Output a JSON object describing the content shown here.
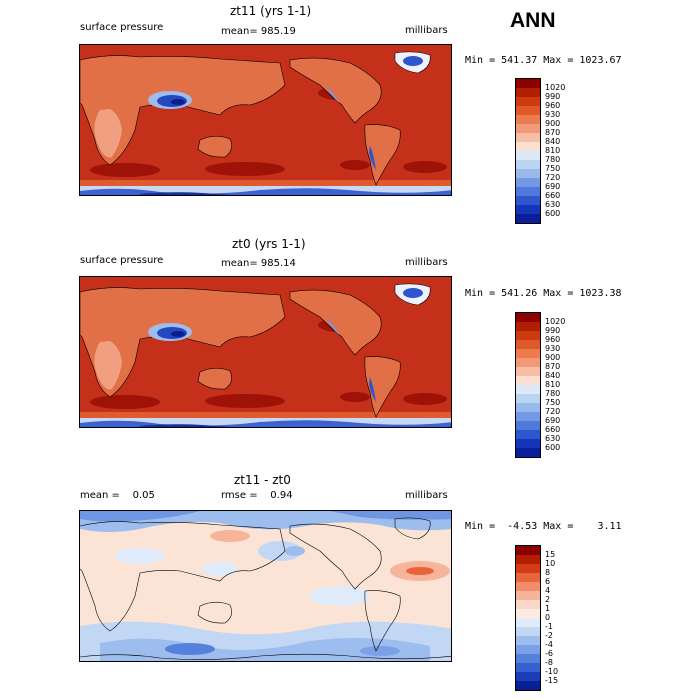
{
  "header": {
    "season": "ANN"
  },
  "panels": [
    {
      "title": "zt11 (yrs 1-1)",
      "left_label": "surface pressure",
      "center_label": "mean= 985.19",
      "right_label": "millibars",
      "minmax": "Min = 541.37 Max = 1023.67",
      "colorbar_levels": [
        "1020",
        "990",
        "960",
        "930",
        "900",
        "870",
        "840",
        "810",
        "780",
        "750",
        "720",
        "690",
        "660",
        "630",
        "600"
      ]
    },
    {
      "title": "zt0 (yrs 1-1)",
      "left_label": "surface pressure",
      "center_label": "mean= 985.14",
      "right_label": "millibars",
      "minmax": "Min = 541.26 Max = 1023.38",
      "colorbar_levels": [
        "1020",
        "990",
        "960",
        "930",
        "900",
        "870",
        "840",
        "810",
        "780",
        "750",
        "720",
        "690",
        "660",
        "630",
        "600"
      ]
    },
    {
      "title": "zt11 - zt0",
      "left_label": "mean =    0.05",
      "center_label": "rmse =    0.94",
      "right_label": "millibars",
      "minmax": "Min =  -4.53 Max =    3.11",
      "colorbar_levels": [
        "15",
        "10",
        "8",
        "6",
        "4",
        "2",
        "1",
        "0",
        "-1",
        "-2",
        "-4",
        "-6",
        "-8",
        "-10",
        "-15"
      ]
    }
  ],
  "colors": {
    "abs_scale": [
      "#8b0000",
      "#b41e00",
      "#cc3a10",
      "#de5a2a",
      "#ec7b50",
      "#f29a78",
      "#f7bea6",
      "#fbe0d2",
      "#dde9f8",
      "#bcd3f2",
      "#98b9ec",
      "#7399e4",
      "#4f79db",
      "#2f55cc",
      "#1634b8",
      "#091e9a"
    ],
    "diff_scale": [
      "#8b0000",
      "#b41e00",
      "#d23c14",
      "#e8643a",
      "#f28c6c",
      "#f6b49a",
      "#fad8c8",
      "#fdebdd",
      "#dfeafa",
      "#c2d7f4",
      "#9dbdee",
      "#7aa0e6",
      "#5580dc",
      "#3660cf",
      "#1a3eba",
      "#0a1e96"
    ]
  }
}
